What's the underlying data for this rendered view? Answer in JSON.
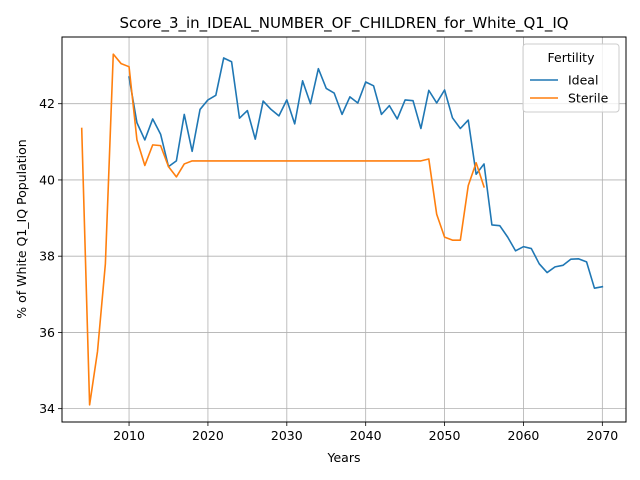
{
  "chart_data": {
    "type": "line",
    "title": "Score_3_in_IDEAL_NUMBER_OF_CHILDREN_for_White_Q1_IQ",
    "xlabel": "Years",
    "ylabel": "% of White Q1_IQ Population",
    "xlim": [
      2001.5,
      2073.0
    ],
    "ylim": [
      33.65,
      43.75
    ],
    "xticks": [
      2010,
      2020,
      2030,
      2040,
      2050,
      2060,
      2070
    ],
    "yticks": [
      34,
      36,
      38,
      40,
      42
    ],
    "grid": true,
    "legend": {
      "title": "Fertility",
      "placement": "top-right"
    },
    "series": [
      {
        "name": "Ideal",
        "color": "#1f77b4",
        "x": [
          2010,
          2011,
          2012,
          2013,
          2014,
          2015,
          2016,
          2017,
          2018,
          2019,
          2020,
          2021,
          2022,
          2023,
          2024,
          2025,
          2026,
          2027,
          2028,
          2029,
          2030,
          2031,
          2032,
          2033,
          2034,
          2035,
          2036,
          2037,
          2038,
          2039,
          2040,
          2041,
          2042,
          2043,
          2044,
          2045,
          2046,
          2047,
          2048,
          2049,
          2050,
          2051,
          2052,
          2053,
          2054,
          2055,
          2056,
          2057,
          2058,
          2059,
          2060,
          2061,
          2062,
          2063,
          2064,
          2065,
          2066,
          2067,
          2068,
          2069,
          2070
        ],
        "y": [
          42.7,
          41.5,
          41.05,
          41.6,
          41.2,
          40.35,
          40.5,
          41.72,
          40.75,
          41.85,
          42.1,
          42.22,
          43.2,
          43.1,
          41.62,
          41.82,
          41.07,
          42.07,
          41.85,
          41.68,
          42.1,
          41.47,
          42.6,
          42.0,
          42.92,
          42.4,
          42.28,
          41.72,
          42.18,
          42.02,
          42.57,
          42.47,
          41.72,
          41.95,
          41.6,
          42.1,
          42.08,
          41.35,
          42.35,
          42.02,
          42.36,
          41.63,
          41.35,
          41.57,
          40.15,
          40.42,
          38.82,
          38.8,
          38.5,
          38.14,
          38.25,
          38.2,
          37.8,
          37.57,
          37.72,
          37.76,
          37.92,
          37.93,
          37.85,
          37.16,
          37.2
        ]
      },
      {
        "name": "Sterile",
        "color": "#ff7f0e",
        "x": [
          2004,
          2005,
          2006,
          2007,
          2008,
          2009,
          2010,
          2011,
          2012,
          2013,
          2014,
          2015,
          2016,
          2017,
          2018,
          2019,
          2020,
          2021,
          2022,
          2023,
          2024,
          2025,
          2026,
          2027,
          2028,
          2029,
          2030,
          2031,
          2032,
          2033,
          2034,
          2035,
          2036,
          2037,
          2038,
          2039,
          2040,
          2041,
          2042,
          2043,
          2044,
          2045,
          2046,
          2047,
          2048,
          2049,
          2050,
          2051,
          2052,
          2053,
          2054,
          2055
        ],
        "y": [
          41.35,
          34.1,
          35.5,
          37.8,
          43.3,
          43.05,
          42.97,
          41.05,
          40.38,
          40.92,
          40.9,
          40.35,
          40.08,
          40.42,
          40.5,
          40.5,
          40.5,
          40.5,
          40.5,
          40.5,
          40.5,
          40.5,
          40.5,
          40.5,
          40.5,
          40.5,
          40.5,
          40.5,
          40.5,
          40.5,
          40.5,
          40.5,
          40.5,
          40.5,
          40.5,
          40.5,
          40.5,
          40.5,
          40.5,
          40.5,
          40.5,
          40.5,
          40.5,
          40.5,
          40.55,
          39.1,
          38.5,
          38.42,
          38.42,
          39.85,
          40.45,
          39.82
        ]
      }
    ]
  }
}
